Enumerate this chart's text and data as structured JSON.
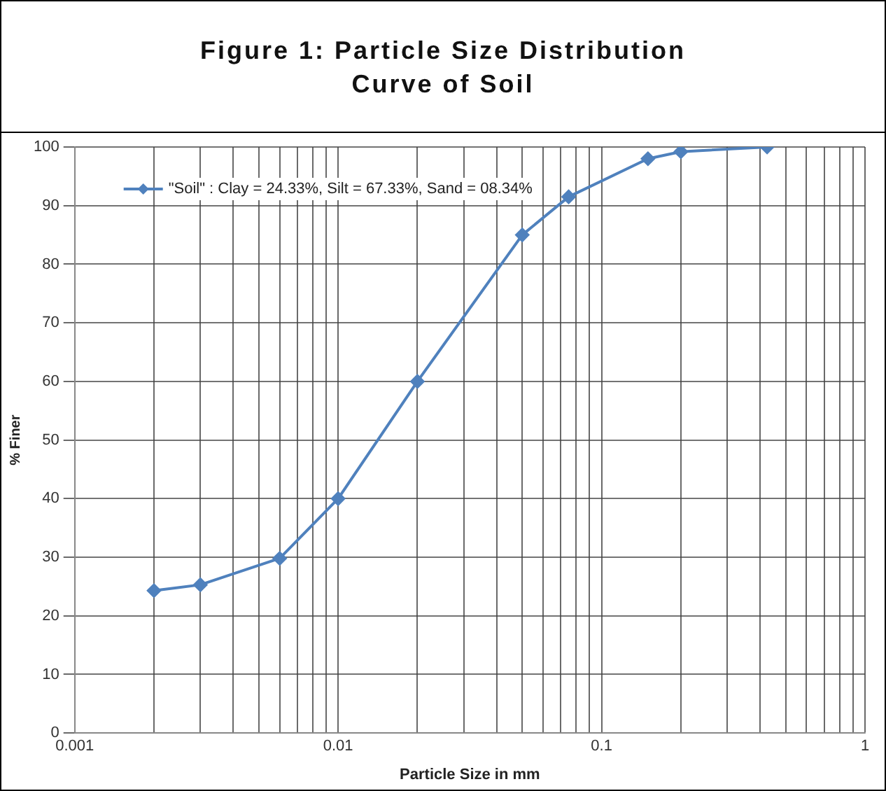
{
  "chart_data": {
    "type": "line",
    "title": "Figure 1: Particle Size Distribution\nCurve of Soil",
    "xlabel": "Particle Size in mm",
    "ylabel": "% Finer",
    "x": [
      0.002,
      0.003,
      0.006,
      0.01,
      0.02,
      0.05,
      0.075,
      0.15,
      0.2,
      0.425
    ],
    "series": [
      {
        "name": "\"Soil\" : Clay = 24.33%, Silt = 67.33%, Sand = 08.34%",
        "color": "#4f81bd",
        "values": [
          24.3,
          25.3,
          29.8,
          40,
          60,
          85,
          91.5,
          98,
          99.2,
          100
        ]
      }
    ],
    "log": "x",
    "xlim": [
      0.001,
      1
    ],
    "xticks": [
      0.001,
      {
        "value": 0.002,
        "label": null
      },
      {
        "value": 0.003,
        "label": null
      },
      {
        "value": 0.004,
        "label": null
      },
      {
        "value": 0.005,
        "label": null
      },
      {
        "value": 0.006,
        "label": null
      },
      {
        "value": 0.007,
        "label": null
      },
      {
        "value": 0.008,
        "label": null
      },
      {
        "value": 0.009,
        "label": null
      },
      0.01,
      {
        "value": 0.02,
        "label": null
      },
      {
        "value": 0.03,
        "label": null
      },
      {
        "value": 0.04,
        "label": null
      },
      {
        "value": 0.05,
        "label": null
      },
      {
        "value": 0.06,
        "label": null
      },
      {
        "value": 0.07,
        "label": null
      },
      {
        "value": 0.08,
        "label": null
      },
      {
        "value": 0.09,
        "label": null
      },
      0.1,
      {
        "value": 0.2,
        "label": null
      },
      {
        "value": 0.3,
        "label": null
      },
      {
        "value": 0.4,
        "label": null
      },
      {
        "value": 0.5,
        "label": null
      },
      {
        "value": 0.6,
        "label": null
      },
      {
        "value": 0.7,
        "label": null
      },
      {
        "value": 0.8,
        "label": null
      },
      {
        "value": 0.9,
        "label": null
      },
      1
    ],
    "ylim": [
      0,
      100
    ],
    "yticks": [
      0,
      10,
      20,
      30,
      40,
      50,
      60,
      70,
      80,
      90,
      100
    ],
    "grid": true,
    "legend": "top left",
    "marker": "diamond",
    "line_style": "solid"
  }
}
